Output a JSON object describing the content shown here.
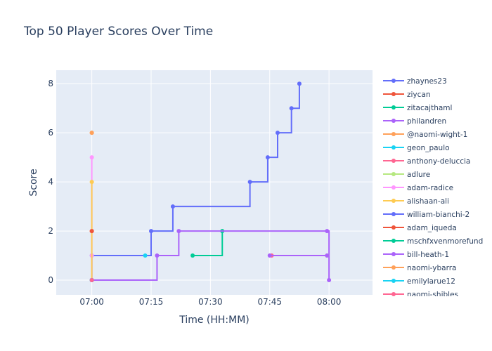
{
  "chart_data": {
    "type": "line",
    "title": "Top 50 Player Scores Over Time",
    "xlabel": "Time (HH:MM)",
    "ylabel": "Score",
    "x_ticks": [
      "07:00",
      "07:15",
      "07:30",
      "07:45",
      "08:00"
    ],
    "y_ticks": [
      "0",
      "2",
      "4",
      "6",
      "8"
    ],
    "xlim": [
      "06:51",
      "08:11"
    ],
    "ylim": [
      -0.6,
      8.55
    ],
    "line_shape": "step-after",
    "grid": true,
    "legend_position": "right",
    "series": [
      {
        "name": "zhaynes23",
        "color": "#636efa",
        "points": [
          [
            "07:00",
            0
          ],
          [
            "07:00",
            1
          ],
          [
            "07:15",
            2
          ],
          [
            "07:20.5",
            3
          ],
          [
            "07:40",
            4
          ],
          [
            "07:44.5",
            5
          ],
          [
            "07:47",
            6
          ],
          [
            "07:50.5",
            7
          ],
          [
            "07:52.5",
            8
          ]
        ]
      },
      {
        "name": "ziycan",
        "color": "#EF553B",
        "points": [
          [
            "07:00",
            2
          ]
        ]
      },
      {
        "name": "zitacajthaml",
        "color": "#00cc96",
        "points": [
          [
            "07:25.5",
            1
          ],
          [
            "07:33",
            2
          ]
        ]
      },
      {
        "name": "philandren",
        "color": "#ab63fa",
        "points": [
          [
            "07:00",
            0
          ],
          [
            "07:16.5",
            1
          ],
          [
            "07:22",
            2
          ],
          [
            "07:59.5",
            2
          ],
          [
            "08:00",
            0
          ]
        ]
      },
      {
        "name": "@naomi-wight-1",
        "color": "#FFA15A",
        "points": [
          [
            "07:00",
            6
          ]
        ]
      },
      {
        "name": "geon_paulo",
        "color": "#19d3f3",
        "points": [
          [
            "07:13.5",
            1
          ]
        ]
      },
      {
        "name": "anthony-deluccia",
        "color": "#FF6692",
        "points": [
          [
            "07:45.5",
            1
          ]
        ]
      },
      {
        "name": "adlure",
        "color": "#B6E880",
        "points": [
          [
            "07:59.5",
            1
          ]
        ]
      },
      {
        "name": "adam-radice",
        "color": "#FF97FF",
        "points": [
          [
            "07:00",
            0
          ],
          [
            "07:00",
            1
          ],
          [
            "07:00",
            5
          ]
        ]
      },
      {
        "name": "alishaan-ali",
        "color": "#FECB52",
        "points": [
          [
            "07:00",
            0
          ],
          [
            "07:00",
            4
          ]
        ]
      },
      {
        "name": "william-bianchi-2",
        "color": "#636efa",
        "points": [
          [
            "07:00",
            0
          ]
        ]
      },
      {
        "name": "adam_iqueda",
        "color": "#EF553B",
        "points": [
          [
            "07:00",
            2
          ]
        ]
      },
      {
        "name": "mschfxvenmorefund",
        "color": "#00cc96",
        "points": [
          [
            "07:00",
            0
          ]
        ]
      },
      {
        "name": "bill-heath-1",
        "color": "#ab63fa",
        "points": [
          [
            "07:45",
            1
          ],
          [
            "07:59.5",
            1
          ]
        ]
      },
      {
        "name": "naomi-ybarra",
        "color": "#FFA15A",
        "points": [
          [
            "07:00",
            6
          ]
        ]
      },
      {
        "name": "emilylarue12",
        "color": "#19d3f3",
        "points": [
          [
            "07:00",
            0
          ]
        ]
      },
      {
        "name": "naomi-shibles",
        "color": "#FF6692",
        "points": [
          [
            "07:00",
            0
          ]
        ]
      }
    ]
  }
}
